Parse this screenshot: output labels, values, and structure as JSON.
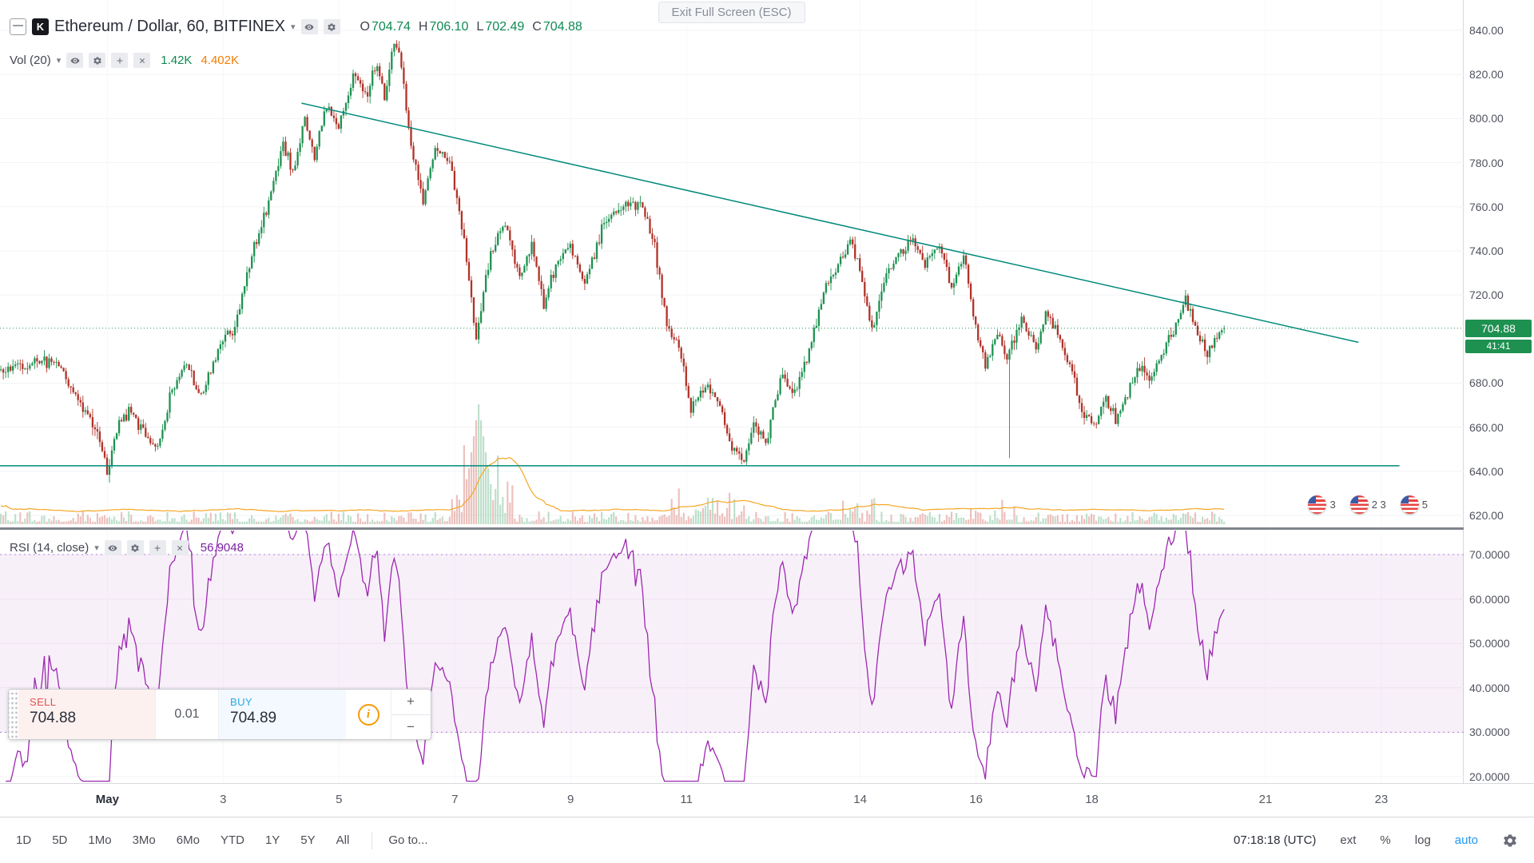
{
  "header": {
    "logo_text": "K",
    "symbol_title": "Ethereum / Dollar, 60, BITFINEX",
    "tooltip": "Exit Full Screen (ESC)",
    "ohlc": {
      "o_label": "O",
      "o_value": "704.74",
      "h_label": "H",
      "h_value": "706.10",
      "l_label": "L",
      "l_value": "702.49",
      "c_label": "C",
      "c_value": "704.88"
    }
  },
  "volume_indicator": {
    "label": "Vol (20)",
    "value1": "1.42K",
    "value2": "4.402K"
  },
  "rsi_indicator": {
    "label": "RSI (14, close)",
    "value": "56.9048"
  },
  "trade_widget": {
    "sell_label": "SELL",
    "sell_price": "704.88",
    "spread": "0.01",
    "buy_label": "BUY",
    "buy_price": "704.89",
    "info": "i",
    "increase": "+",
    "decrease": "−"
  },
  "flags": [
    {
      "count": "3"
    },
    {
      "count": "2 3"
    },
    {
      "count": "5"
    }
  ],
  "toolbar": {
    "ranges": [
      "1D",
      "5D",
      "1Mo",
      "3Mo",
      "6Mo",
      "YTD",
      "1Y",
      "5Y",
      "All"
    ],
    "goto": "Go to...",
    "clock": "07:18:18 (UTC)",
    "ext": "ext",
    "percent": "%",
    "log": "log",
    "auto": "auto"
  },
  "chart_data": {
    "type": "candlestick",
    "symbol": "Ethereum / Dollar",
    "interval": "60",
    "exchange": "BITFINEX",
    "ohlc_current": {
      "open": 704.74,
      "high": 706.1,
      "low": 702.49,
      "close": 704.88
    },
    "last_price": 704.88,
    "price_axis": {
      "min": 620,
      "max": 840,
      "last_price_label": "704.88",
      "countdown_label": "41:41",
      "ticks": [
        {
          "label": "840.00",
          "price": 840
        },
        {
          "label": "820.00",
          "price": 820
        },
        {
          "label": "800.00",
          "price": 800
        },
        {
          "label": "780.00",
          "price": 780
        },
        {
          "label": "760.00",
          "price": 760
        },
        {
          "label": "740.00",
          "price": 740
        },
        {
          "label": "720.00",
          "price": 720
        },
        {
          "label": "680.00",
          "price": 680
        },
        {
          "label": "660.00",
          "price": 660
        },
        {
          "label": "640.00",
          "price": 640
        },
        {
          "label": "620.00",
          "price": 620
        }
      ]
    },
    "time_axis_ticks": [
      {
        "label": "May",
        "c": 44.5,
        "major": true
      },
      {
        "label": "3",
        "c": 92.5
      },
      {
        "label": "5",
        "c": 140.5
      },
      {
        "label": "7",
        "c": 188.5
      },
      {
        "label": "9",
        "c": 236.5
      },
      {
        "label": "11",
        "c": 284.5
      },
      {
        "label": "14",
        "c": 356.5
      },
      {
        "label": "16",
        "c": 404.5
      },
      {
        "label": "18",
        "c": 452.5
      },
      {
        "label": "21",
        "c": 524.5
      },
      {
        "label": "23",
        "c": 572.5
      }
    ],
    "candles": {
      "count": 508,
      "bars_per_day": 24,
      "anchors": [
        [
          0,
          686
        ],
        [
          24,
          690
        ],
        [
          34,
          671
        ],
        [
          40,
          660
        ],
        [
          45,
          641
        ],
        [
          50,
          662
        ],
        [
          55,
          668
        ],
        [
          61,
          655
        ],
        [
          66,
          649
        ],
        [
          72,
          678
        ],
        [
          78,
          688
        ],
        [
          84,
          674
        ],
        [
          92,
          698
        ],
        [
          98,
          705
        ],
        [
          105,
          738
        ],
        [
          112,
          762
        ],
        [
          118,
          788
        ],
        [
          122,
          775
        ],
        [
          127,
          800
        ],
        [
          131,
          782
        ],
        [
          136,
          806
        ],
        [
          141,
          795
        ],
        [
          147,
          820
        ],
        [
          153,
          812
        ],
        [
          157,
          826
        ],
        [
          160,
          810
        ],
        [
          164,
          835
        ],
        [
          167,
          824
        ],
        [
          171,
          786
        ],
        [
          176,
          762
        ],
        [
          181,
          788
        ],
        [
          187,
          780
        ],
        [
          193,
          744
        ],
        [
          198,
          700
        ],
        [
          204,
          740
        ],
        [
          210,
          752
        ],
        [
          216,
          728
        ],
        [
          221,
          744
        ],
        [
          226,
          716
        ],
        [
          231,
          734
        ],
        [
          237,
          742
        ],
        [
          243,
          724
        ],
        [
          250,
          750
        ],
        [
          259,
          762
        ],
        [
          267,
          760
        ],
        [
          272,
          742
        ],
        [
          277,
          706
        ],
        [
          282,
          696
        ],
        [
          287,
          668
        ],
        [
          293,
          680
        ],
        [
          298,
          672
        ],
        [
          305,
          648
        ],
        [
          309,
          643
        ],
        [
          313,
          662
        ],
        [
          318,
          652
        ],
        [
          324,
          682
        ],
        [
          330,
          676
        ],
        [
          336,
          694
        ],
        [
          342,
          722
        ],
        [
          348,
          734
        ],
        [
          353,
          745
        ],
        [
          357,
          733
        ],
        [
          362,
          704
        ],
        [
          368,
          728
        ],
        [
          373,
          738
        ],
        [
          379,
          746
        ],
        [
          384,
          734
        ],
        [
          390,
          742
        ],
        [
          395,
          724
        ],
        [
          400,
          738
        ],
        [
          405,
          704
        ],
        [
          409,
          688
        ],
        [
          414,
          702
        ],
        [
          418,
          692
        ],
        [
          424,
          708
        ],
        [
          430,
          696
        ],
        [
          434,
          712
        ],
        [
          439,
          702
        ],
        [
          444,
          688
        ],
        [
          449,
          668
        ],
        [
          454,
          660
        ],
        [
          459,
          672
        ],
        [
          463,
          664
        ],
        [
          468,
          676
        ],
        [
          473,
          688
        ],
        [
          477,
          680
        ],
        [
          482,
          694
        ],
        [
          488,
          706
        ],
        [
          492,
          718
        ],
        [
          497,
          702
        ],
        [
          501,
          692
        ],
        [
          504,
          700
        ],
        [
          507,
          705
        ]
      ],
      "long_wicks": [
        [
          45,
          636
        ],
        [
          418,
          646
        ]
      ]
    },
    "volume": {
      "label": "Vol (20)",
      "ma_value": "1.42K",
      "last_value": "4.402K",
      "spikes": [
        [
          44,
          52,
          2.2
        ],
        [
          186,
          212,
          5.5
        ],
        [
          276,
          308,
          2.6
        ],
        [
          338,
          362,
          2.0
        ],
        [
          400,
          424,
          1.7
        ]
      ],
      "peak": {
        "c": 198,
        "h": 150
      }
    },
    "trendlines": [
      {
        "type": "descending",
        "from_c": 125,
        "from_price": 807,
        "to_c": 563,
        "to_price": 698.5
      },
      {
        "type": "horizontal-support",
        "from_c": 0,
        "to_c": 580,
        "price": 642.5
      }
    ],
    "rsi": {
      "period": 14,
      "source": "close",
      "current": 56.9048,
      "overbought": 70,
      "oversold": 30,
      "axis_ticks": [
        {
          "label": "70.0000",
          "value": 70
        },
        {
          "label": "60.0000",
          "value": 60
        },
        {
          "label": "50.0000",
          "value": 50
        },
        {
          "label": "40.0000",
          "value": 40
        },
        {
          "label": "30.0000",
          "value": 30
        },
        {
          "label": "20.0000",
          "value": 20
        }
      ]
    },
    "colors": {
      "up": "#1e9151",
      "down": "#b03329",
      "volume_up": "rgba(70,165,110,0.35)",
      "volume_down": "rgba(205,95,85,0.38)",
      "volume_ma": "#f5a623",
      "trendline": "#00897b",
      "rsi_line": "#9c27b0",
      "rsi_band": "#9c27b0",
      "last_price": "#1e9151",
      "badge_bg": "#1e9151",
      "accent_blue": "#2196f3",
      "sell_red": "#e5504c",
      "buy_blue": "#29a8e2",
      "info_orange": "#f59b00"
    }
  }
}
